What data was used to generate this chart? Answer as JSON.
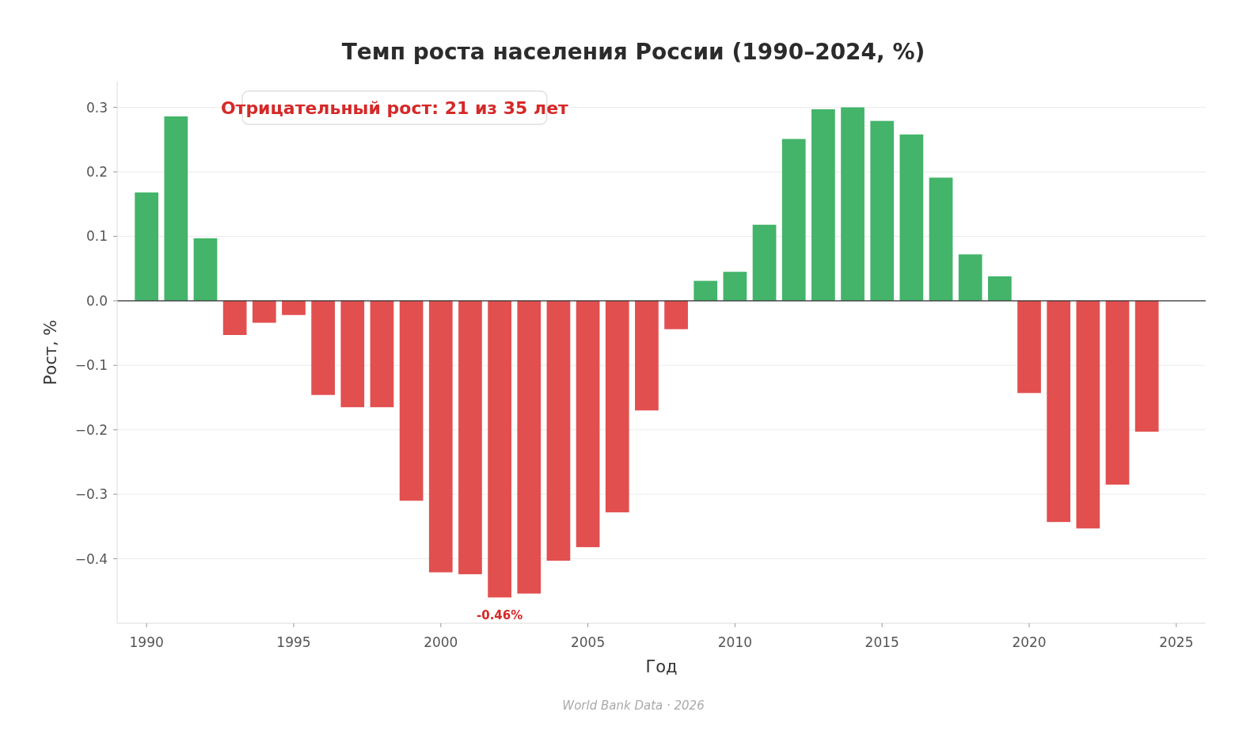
{
  "chart_data": {
    "type": "bar",
    "title": "Темп роста населения России (1990–2024, %)",
    "xlabel": "Год",
    "ylabel": "Рост, %",
    "x": [
      1990,
      1991,
      1992,
      1993,
      1994,
      1995,
      1996,
      1997,
      1998,
      1999,
      2000,
      2001,
      2002,
      2003,
      2004,
      2005,
      2006,
      2007,
      2008,
      2009,
      2010,
      2011,
      2012,
      2013,
      2014,
      2015,
      2016,
      2017,
      2018,
      2019,
      2020,
      2021,
      2022,
      2023,
      2024
    ],
    "values": [
      0.168,
      0.286,
      0.097,
      -0.053,
      -0.034,
      -0.022,
      -0.146,
      -0.165,
      -0.165,
      -0.31,
      -0.421,
      -0.424,
      -0.46,
      -0.454,
      -0.403,
      -0.382,
      -0.328,
      -0.17,
      -0.044,
      0.031,
      0.045,
      0.118,
      0.251,
      0.297,
      0.3,
      0.279,
      0.258,
      0.191,
      0.072,
      0.038,
      -0.143,
      -0.343,
      -0.353,
      -0.285,
      -0.203
    ],
    "colors": [
      "#43b46a",
      "#43b46a",
      "#43b46a",
      "#e24f4f",
      "#e24f4f",
      "#e24f4f",
      "#e24f4f",
      "#e24f4f",
      "#e24f4f",
      "#e24f4f",
      "#e24f4f",
      "#e24f4f",
      "#e24f4f",
      "#e24f4f",
      "#e24f4f",
      "#e24f4f",
      "#e24f4f",
      "#e24f4f",
      "#e24f4f",
      "#43b46a",
      "#43b46a",
      "#43b46a",
      "#43b46a",
      "#43b46a",
      "#43b46a",
      "#43b46a",
      "#43b46a",
      "#43b46a",
      "#43b46a",
      "#43b46a",
      "#e24f4f",
      "#e24f4f",
      "#e24f4f",
      "#e24f4f",
      "#e24f4f"
    ],
    "xlim": [
      1989,
      2026
    ],
    "xticks": [
      1990,
      1995,
      2000,
      2005,
      2010,
      2015,
      2020,
      2025
    ],
    "ylim": [
      -0.5,
      0.34
    ],
    "yticks": [
      {
        "value": -0.4,
        "label": "−0.4"
      },
      {
        "value": -0.3,
        "label": "−0.3"
      },
      {
        "value": -0.2,
        "label": "−0.2"
      },
      {
        "value": -0.1,
        "label": "−0.1"
      },
      {
        "value": 0,
        "label": "0.0"
      },
      {
        "value": 0.1,
        "label": "0.1"
      },
      {
        "value": 0.2,
        "label": "0.2"
      },
      {
        "value": 0.3,
        "label": "0.3"
      }
    ],
    "grid": "y",
    "ref_lines": [
      {
        "axis": "y",
        "value": 0,
        "color": "#333333"
      }
    ],
    "annotations": [
      "Отрицательный рост: 21 из 35 лет",
      {
        "text": "-0.46%",
        "x": 2002,
        "y": -0.46
      },
      "World Bank Data  ·  2026"
    ]
  }
}
